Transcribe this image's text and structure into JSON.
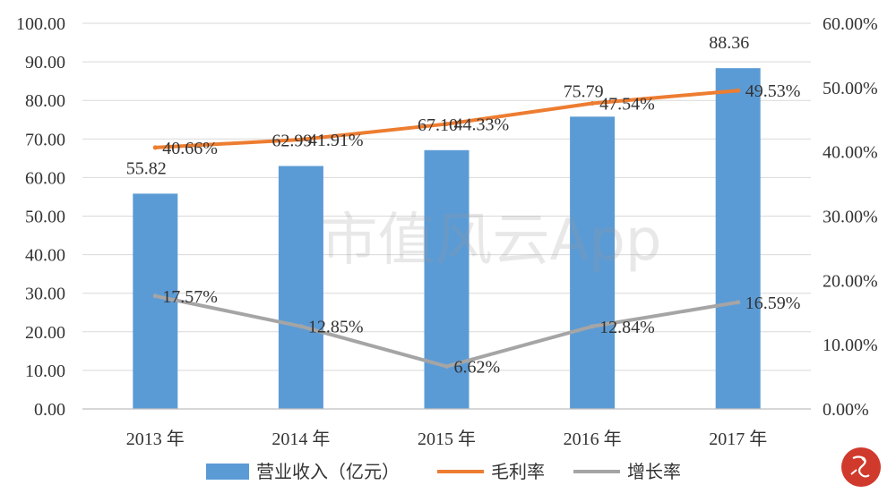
{
  "chart_data": {
    "type": "bar",
    "categories": [
      "2013 年",
      "2014 年",
      "2015 年",
      "2016 年",
      "2017 年"
    ],
    "series": [
      {
        "name": "营业收入（亿元）",
        "type": "bar",
        "axis": "left",
        "values": [
          55.82,
          62.99,
          67.1,
          75.79,
          88.36
        ],
        "labels": [
          "55.82",
          "62.99",
          "67.10",
          "75.79",
          "88.36"
        ],
        "color": "#5b9bd5"
      },
      {
        "name": "毛利率",
        "type": "line",
        "axis": "right",
        "values": [
          40.66,
          41.91,
          44.33,
          47.54,
          49.53
        ],
        "labels": [
          "40.66%",
          "41.91%",
          "44.33%",
          "47.54%",
          "49.53%"
        ],
        "color": "#ed7d31"
      },
      {
        "name": "增长率",
        "type": "line",
        "axis": "right",
        "values": [
          17.57,
          12.85,
          6.62,
          12.84,
          16.59
        ],
        "labels": [
          "17.57%",
          "12.85%",
          "6.62%",
          "12.84%",
          "16.59%"
        ],
        "color": "#a5a5a5"
      }
    ],
    "y_left": {
      "ylim": [
        0,
        100
      ],
      "ticks": [
        "0.00",
        "10.00",
        "20.00",
        "30.00",
        "40.00",
        "50.00",
        "60.00",
        "70.00",
        "80.00",
        "90.00",
        "100.00"
      ]
    },
    "y_right": {
      "ylim": [
        0,
        60
      ],
      "ticks": [
        "0.00%",
        "10.00%",
        "20.00%",
        "30.00%",
        "40.00%",
        "50.00%",
        "60.00%"
      ]
    },
    "grid": true,
    "legend": "bottom",
    "title": "",
    "xlabel": "",
    "ylabel": ""
  },
  "watermark": "市值风云App"
}
